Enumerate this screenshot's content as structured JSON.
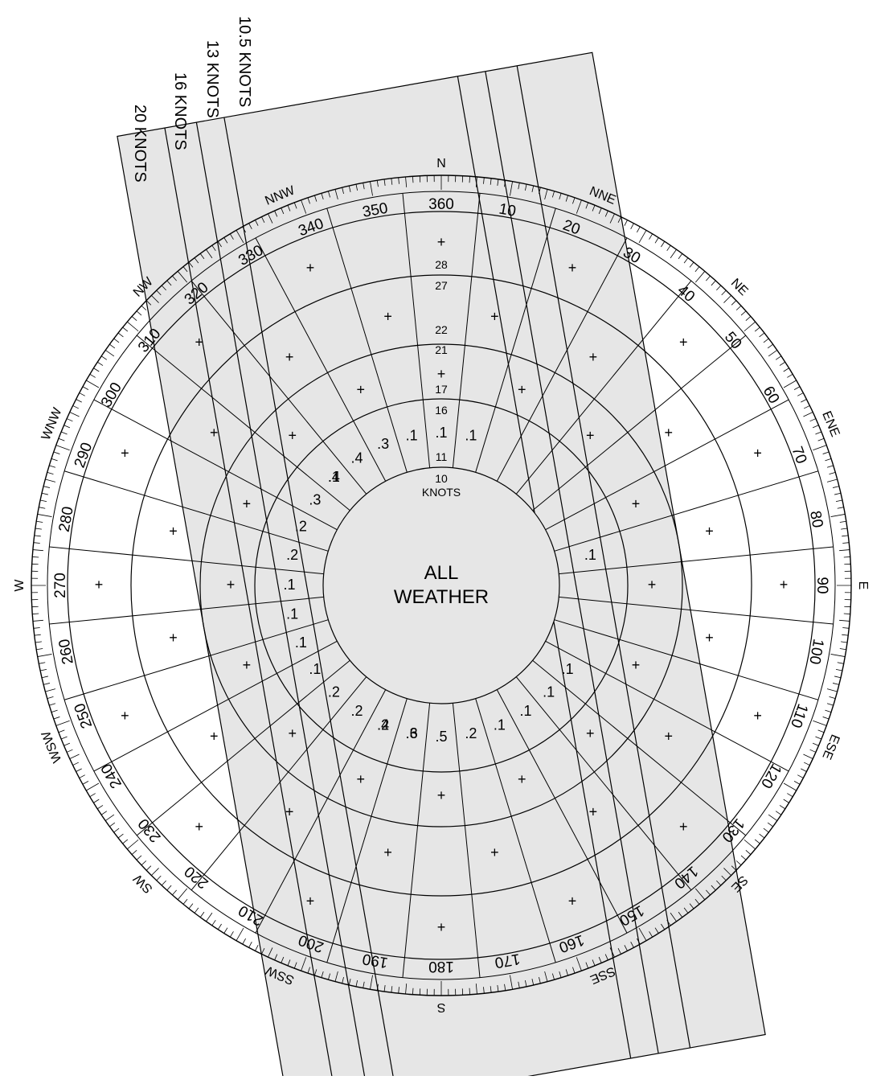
{
  "title_center": [
    "ALL",
    "WEATHER"
  ],
  "speed_bands": [
    {
      "label": "10.5 KNOTS"
    },
    {
      "label": "13 KNOTS"
    },
    {
      "label": "16 KNOTS"
    },
    {
      "label": "20 KNOTS"
    }
  ],
  "ring_labels": [
    "10",
    "KNOTS",
    "11",
    "16",
    "17",
    "21",
    "22",
    "27",
    "28"
  ],
  "cardinals": [
    {
      "label": "N",
      "deg": 0
    },
    {
      "label": "NNE",
      "deg": 22.5
    },
    {
      "label": "NE",
      "deg": 45
    },
    {
      "label": "ENE",
      "deg": 67.5
    },
    {
      "label": "E",
      "deg": 90
    },
    {
      "label": "ESE",
      "deg": 112.5
    },
    {
      "label": "SE",
      "deg": 135
    },
    {
      "label": "SSE",
      "deg": 157.5
    },
    {
      "label": "S",
      "deg": 180
    },
    {
      "label": "SSW",
      "deg": 202.5
    },
    {
      "label": "SW",
      "deg": 225
    },
    {
      "label": "WSW",
      "deg": 247.5
    },
    {
      "label": "W",
      "deg": 270
    },
    {
      "label": "WNW",
      "deg": 292.5
    },
    {
      "label": "NW",
      "deg": 315
    },
    {
      "label": "NNW",
      "deg": 337.5
    }
  ],
  "degree_labels": [
    "360",
    "10",
    "20",
    "30",
    "40",
    "50",
    "60",
    "70",
    "80",
    "90",
    "100",
    "110",
    "120",
    "130",
    "140",
    "150",
    "160",
    "170",
    "180",
    "190",
    "200",
    "210",
    "220",
    "230",
    "240",
    "250",
    "260",
    "270",
    "280",
    "290",
    "300",
    "310",
    "320",
    "330",
    "340",
    "350"
  ],
  "sector_values_inner": [
    {
      "deg": 0,
      "value": ".1"
    },
    {
      "deg": 11.25,
      "value": ".1"
    },
    {
      "deg": -11.25,
      "value": ".1"
    },
    {
      "deg": -22.5,
      "value": ".3"
    },
    {
      "deg": -33.75,
      "value": ".4"
    },
    {
      "deg": -45,
      "value": ".4"
    },
    {
      "deg": -56.25,
      "value": ".3"
    },
    {
      "deg": -67.5,
      "value": ".2"
    },
    {
      "deg": -78.75,
      "value": ".2"
    },
    {
      "deg": -90,
      "value": ".1"
    },
    {
      "deg": -101.25,
      "value": ".1"
    },
    {
      "deg": -112.5,
      "value": ".1"
    },
    {
      "deg": -123.75,
      "value": ".1"
    },
    {
      "deg": -135,
      "value": ".2"
    },
    {
      "deg": -146.25,
      "value": ".2"
    },
    {
      "deg": -157.5,
      "value": ".2"
    },
    {
      "deg": -168.75,
      "value": ".3"
    },
    {
      "deg": 180,
      "value": ".5"
    },
    {
      "deg": 191.25,
      "value": ".6"
    },
    {
      "deg": 202.5,
      "value": ".4"
    },
    {
      "deg": 168.75,
      "value": ".2"
    },
    {
      "deg": 157.5,
      "value": ".1"
    },
    {
      "deg": 146.25,
      "value": ".1"
    },
    {
      "deg": 135,
      "value": ".1"
    },
    {
      "deg": 123.75,
      "value": ".1"
    },
    {
      "deg": 78.75,
      "value": ".1"
    },
    {
      "deg": -45,
      "value": ".1"
    }
  ]
}
